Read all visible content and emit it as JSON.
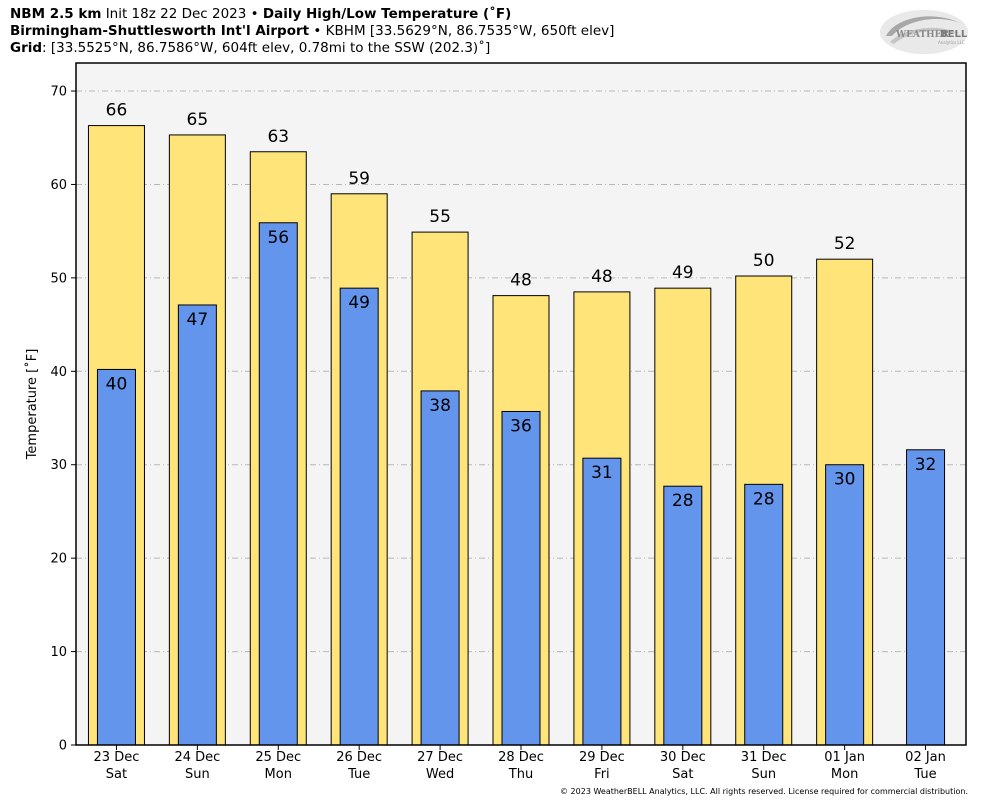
{
  "header": {
    "model": "NBM 2.5 km",
    "init": "Init 18z 22 Dec 2023",
    "sep": "•",
    "product": "Daily High/Low Temperature (˚F)",
    "station_name": "Birmingham-Shuttlesworth Int'l Airport",
    "station_info": "KBHM [33.5629°N, 86.7535°W, 650ft elev]",
    "grid_label": "Grid",
    "grid_info": ": [33.5525°N, 86.7586°W, 604ft elev, 0.78mi to the SSW (202.3)˚]"
  },
  "logo": {
    "text_a": "WEATHER",
    "text_b": "BELL",
    "small": "Analytics LLC"
  },
  "copyright": "© 2023 WeatherBELL Analytics, LLC. All rights reserved. License required for commercial distribution.",
  "colors": {
    "high": "#ffe47a",
    "low": "#6495ed",
    "plot_bg": "#f4f4f4",
    "grid": "#b8b8b8"
  },
  "chart_data": {
    "type": "bar",
    "ylabel": "Temperature [˚F]",
    "ylim": [
      0,
      73
    ],
    "yticks": [
      0,
      10,
      20,
      30,
      40,
      50,
      60,
      70
    ],
    "grid": true,
    "categories": [
      {
        "date": "23 Dec",
        "day": "Sat"
      },
      {
        "date": "24 Dec",
        "day": "Sun"
      },
      {
        "date": "25 Dec",
        "day": "Mon"
      },
      {
        "date": "26 Dec",
        "day": "Tue"
      },
      {
        "date": "27 Dec",
        "day": "Wed"
      },
      {
        "date": "28 Dec",
        "day": "Thu"
      },
      {
        "date": "29 Dec",
        "day": "Fri"
      },
      {
        "date": "30 Dec",
        "day": "Sat"
      },
      {
        "date": "31 Dec",
        "day": "Sun"
      },
      {
        "date": "01 Jan",
        "day": "Mon"
      },
      {
        "date": "02 Jan",
        "day": "Tue"
      }
    ],
    "series": [
      {
        "key": "high",
        "values": [
          66.3,
          65.3,
          63.5,
          59.0,
          54.9,
          48.1,
          48.5,
          48.9,
          50.2,
          52.0,
          null
        ],
        "labels": [
          "66",
          "65",
          "63",
          "59",
          "55",
          "48",
          "48",
          "49",
          "50",
          "52",
          null
        ]
      },
      {
        "key": "low",
        "values": [
          40.2,
          47.1,
          55.9,
          48.9,
          37.9,
          35.7,
          30.7,
          27.7,
          27.9,
          30.0,
          31.6
        ],
        "labels": [
          "40",
          "47",
          "56",
          "49",
          "38",
          "36",
          "31",
          "28",
          "28",
          "30",
          "32"
        ]
      }
    ]
  }
}
